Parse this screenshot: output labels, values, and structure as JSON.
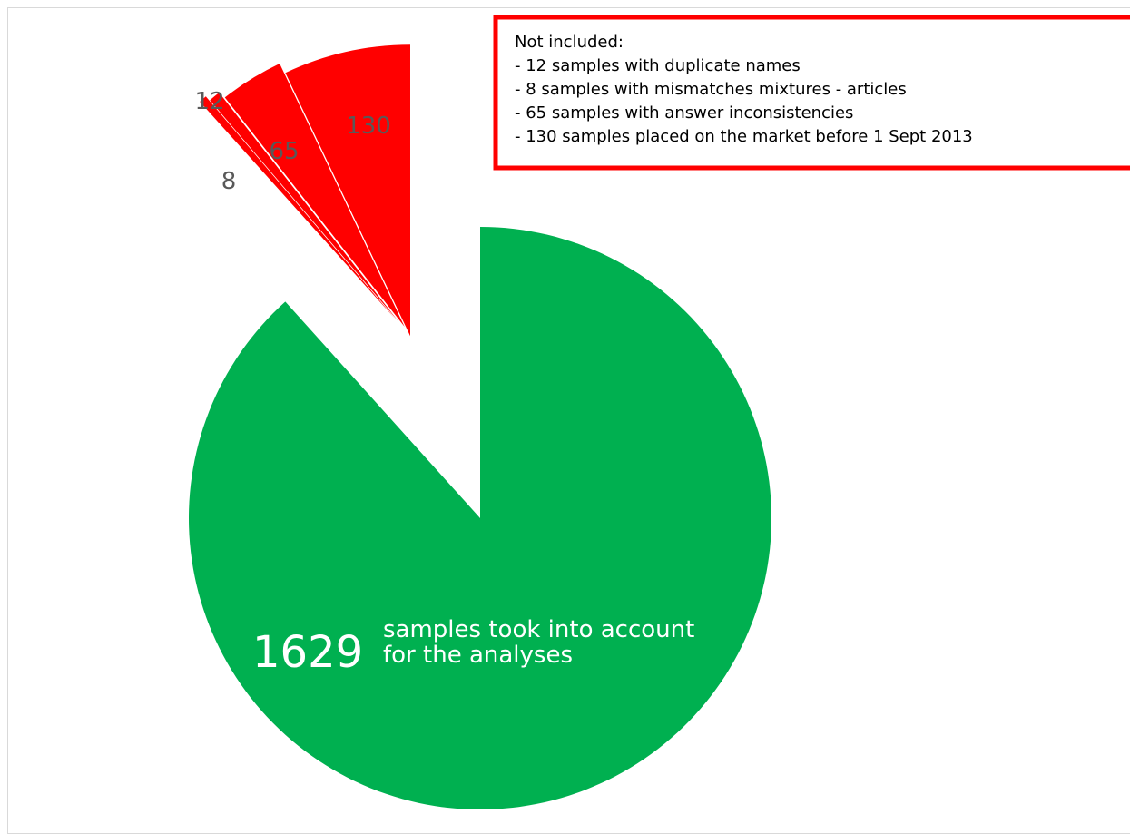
{
  "chart_data": {
    "type": "pie",
    "values": [
      1629,
      8,
      12,
      65,
      130
    ],
    "colors": [
      "#00b050",
      "#ff0000",
      "#ff0000",
      "#ff0000",
      "#ff0000"
    ],
    "main_label": [
      "samples took into account",
      "for the analyses"
    ],
    "annotation_lines": [
      "Not included:",
      "- 12 samples with duplicate names",
      "- 8 samples with mismatches mixtures - articles",
      "- 65 samples with answer inconsistencies",
      "- 130 samples placed on the market before 1 Sept 2013"
    ]
  }
}
